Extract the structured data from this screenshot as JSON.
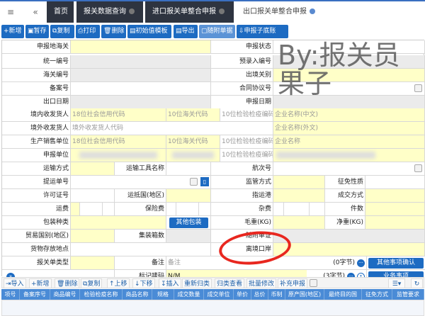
{
  "tabs": [
    {
      "label": "首页"
    },
    {
      "label": "报关数据查询"
    },
    {
      "label": "进口报关单整合申报"
    },
    {
      "label": "出口报关单整合申报"
    }
  ],
  "toolbar": [
    "新增",
    "暂存",
    "复制",
    "打印",
    "删除",
    "初始值模板",
    "导出",
    "随附单据",
    "申报子底账"
  ],
  "watermark": "By:报关员果子",
  "form": {
    "r1": [
      "申报地海关",
      "申报状态"
    ],
    "r2": [
      "统一编号",
      "预录入编号"
    ],
    "r3": [
      "海关编号",
      "出境关别"
    ],
    "r4": [
      "备案号",
      "合同协议号"
    ],
    "r5": [
      "出口日期",
      "申报日期"
    ],
    "r6": {
      "label": "境内收发货人",
      "ph": [
        "18位社会信用代码",
        "10位海关代码",
        "10位检验检疫编码",
        "企业名称(中文)"
      ]
    },
    "r7": {
      "label": "境外收发货人",
      "ph": [
        "境外收发货人代码",
        "企业名称(外文)"
      ]
    },
    "r8": {
      "label": "生产销售单位",
      "ph": [
        "18位社会信用代码",
        "10位海关代码",
        "10位检验检疫编码",
        "企业名称"
      ]
    },
    "r9": {
      "label": "申报单位",
      "ph": [
        "10位检验检疫编码"
      ]
    },
    "r10": [
      "运输方式",
      "运输工具名称",
      "航次号"
    ],
    "r11": [
      "提运单号",
      "监管方式",
      "征免性质"
    ],
    "r12": [
      "许可证号",
      "运抵国(地区)",
      "指运港",
      "成交方式"
    ],
    "r13": [
      "运费",
      "保险费",
      "杂费",
      "件数"
    ],
    "r14": {
      "labels": [
        "包装种类",
        "毛重(KG)",
        "净重(KG)"
      ],
      "button": "其他包装"
    },
    "r15": [
      "贸易国别(地区)",
      "集装箱数",
      "随附单证"
    ],
    "r16": [
      "货物存放地点",
      "离境口岸"
    ],
    "r17": {
      "labels": [
        "报关单类型",
        "备注"
      ],
      "placeholder": "备注",
      "bytes": "(0字节)",
      "button": "其他事项确认"
    },
    "r18": {
      "label": "标记唛码",
      "value": "N/M",
      "bytes": "(3字节)",
      "button": "业务事项"
    }
  },
  "grid_toolbar": [
    "导入",
    "新增",
    "删除",
    "复制",
    "上移",
    "下移",
    "插入",
    "重新归类",
    "归类查看",
    "批量修改",
    "补充申报"
  ],
  "grid_columns": [
    "项号",
    "备案序号",
    "商品编号",
    "检验检疫名称",
    "商品名称",
    "规格",
    "成交数量",
    "成交单位",
    "单价",
    "总价",
    "币制",
    "原产国(地区)",
    "最终目的国",
    "征免方式",
    "监管要求"
  ],
  "colors": {
    "tab_bg": "#2e3440",
    "button": "#1d6bc2",
    "required": "#ffffc8",
    "readonly": "#ebebeb",
    "grid_header": "#4a8bd6",
    "annotation": "#e8271f"
  }
}
